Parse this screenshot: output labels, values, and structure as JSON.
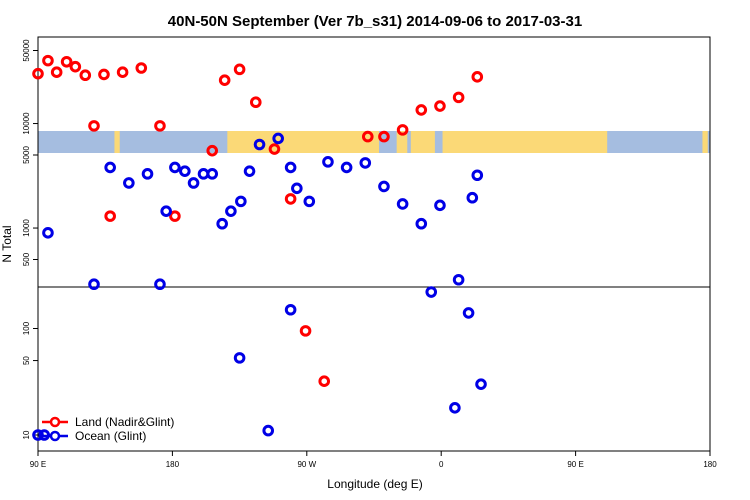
{
  "chart_data": {
    "type": "scatter",
    "title": "40N-50N September (Ver 7b_s31)   2014-09-06 to 2017-03-31",
    "xlabel": "Longitude (deg E)",
    "ylabel": "N Total",
    "y_scale": "log",
    "x_ticks": [
      "90 E",
      "180",
      "90 W",
      "0",
      "90 E",
      "180"
    ],
    "upper_y_ticks": [
      "500",
      "1000",
      "5000",
      "10000",
      "50000"
    ],
    "lower_y_ticks": [
      "10",
      "50",
      "100"
    ],
    "legend_position": "bottom-left",
    "map_band_colors": {
      "land": "#fbd977",
      "ocean": "#a5bde0"
    },
    "series": [
      {
        "name": "Land (Nadir&Glint)",
        "color": "#ff0000",
        "upper": [
          {
            "x": 90,
            "y": 30000
          },
          {
            "x": 105,
            "y": 31000
          },
          {
            "x": 120,
            "y": 35000
          },
          {
            "x": 135,
            "y": 9500
          },
          {
            "x": 148,
            "y": 1300
          },
          {
            "x": -130,
            "y": 5500
          },
          {
            "x": -120,
            "y": 26000
          },
          {
            "x": -108,
            "y": 33000
          },
          {
            "x": -95,
            "y": 16000
          },
          {
            "x": -80,
            "y": 5700
          },
          {
            "x": -67,
            "y": 1900
          },
          {
            "x": -5,
            "y": 7500
          },
          {
            "x": 8,
            "y": 7500
          },
          {
            "x": 23,
            "y": 8700
          },
          {
            "x": 38,
            "y": 13500
          },
          {
            "x": 53,
            "y": 14700
          },
          {
            "x": 68,
            "y": 17800
          },
          {
            "x": 83,
            "y": 28000
          },
          {
            "x": 98,
            "y": 40000
          },
          {
            "x": 113,
            "y": 39000
          },
          {
            "x": 128,
            "y": 29000
          },
          {
            "x": 143,
            "y": 29500
          },
          {
            "x": 158,
            "y": 31000
          },
          {
            "x": 173,
            "y": 34000
          },
          {
            "x": -172,
            "y": 9500
          },
          {
            "x": -160,
            "y": 1300
          }
        ],
        "lower": [
          {
            "x": -55,
            "y": 95
          },
          {
            "x": -40,
            "y": 32
          }
        ]
      },
      {
        "name": "Ocean (Glint)",
        "color": "#0000e6",
        "upper": [
          {
            "x": 135,
            "y": 290
          },
          {
            "x": 148,
            "y": 3800
          },
          {
            "x": 163,
            "y": 2700
          },
          {
            "x": 178,
            "y": 3300
          },
          {
            "x": -167,
            "y": 1450
          },
          {
            "x": -152,
            "y": 3500
          },
          {
            "x": -137,
            "y": 3300
          },
          {
            "x": -122,
            "y": 1100
          },
          {
            "x": -107,
            "y": 1800
          },
          {
            "x": -92,
            "y": 6300
          },
          {
            "x": -77,
            "y": 7200
          },
          {
            "x": -62,
            "y": 2400
          },
          {
            "x": 79,
            "y": 1950
          },
          {
            "x": -67,
            "y": 3800
          },
          {
            "x": -52,
            "y": 1800
          },
          {
            "x": -37,
            "y": 4300
          },
          {
            "x": -22,
            "y": 3800
          },
          {
            "x": -7,
            "y": 4200
          },
          {
            "x": 8,
            "y": 2500
          },
          {
            "x": 23,
            "y": 1700
          },
          {
            "x": 38,
            "y": 1100
          },
          {
            "x": 53,
            "y": 1650
          },
          {
            "x": 68,
            "y": 320
          },
          {
            "x": 83,
            "y": 3200
          },
          {
            "x": 98,
            "y": 900
          },
          {
            "x": -172,
            "y": 290
          },
          {
            "x": -160,
            "y": 3800
          },
          {
            "x": -145,
            "y": 2700
          },
          {
            "x": -130,
            "y": 3300
          },
          {
            "x": -115,
            "y": 1450
          },
          {
            "x": -100,
            "y": 3500
          }
        ],
        "lower": [
          {
            "x": 90,
            "y": 10
          },
          {
            "x": -108,
            "y": 53
          },
          {
            "x": -85,
            "y": 11
          },
          {
            "x": -67,
            "y": 150
          },
          {
            "x": 46,
            "y": 220
          },
          {
            "x": 65,
            "y": 18
          },
          {
            "x": 76,
            "y": 140
          },
          {
            "x": 86,
            "y": 30
          },
          {
            "x": 95,
            "y": 10
          }
        ]
      }
    ]
  }
}
